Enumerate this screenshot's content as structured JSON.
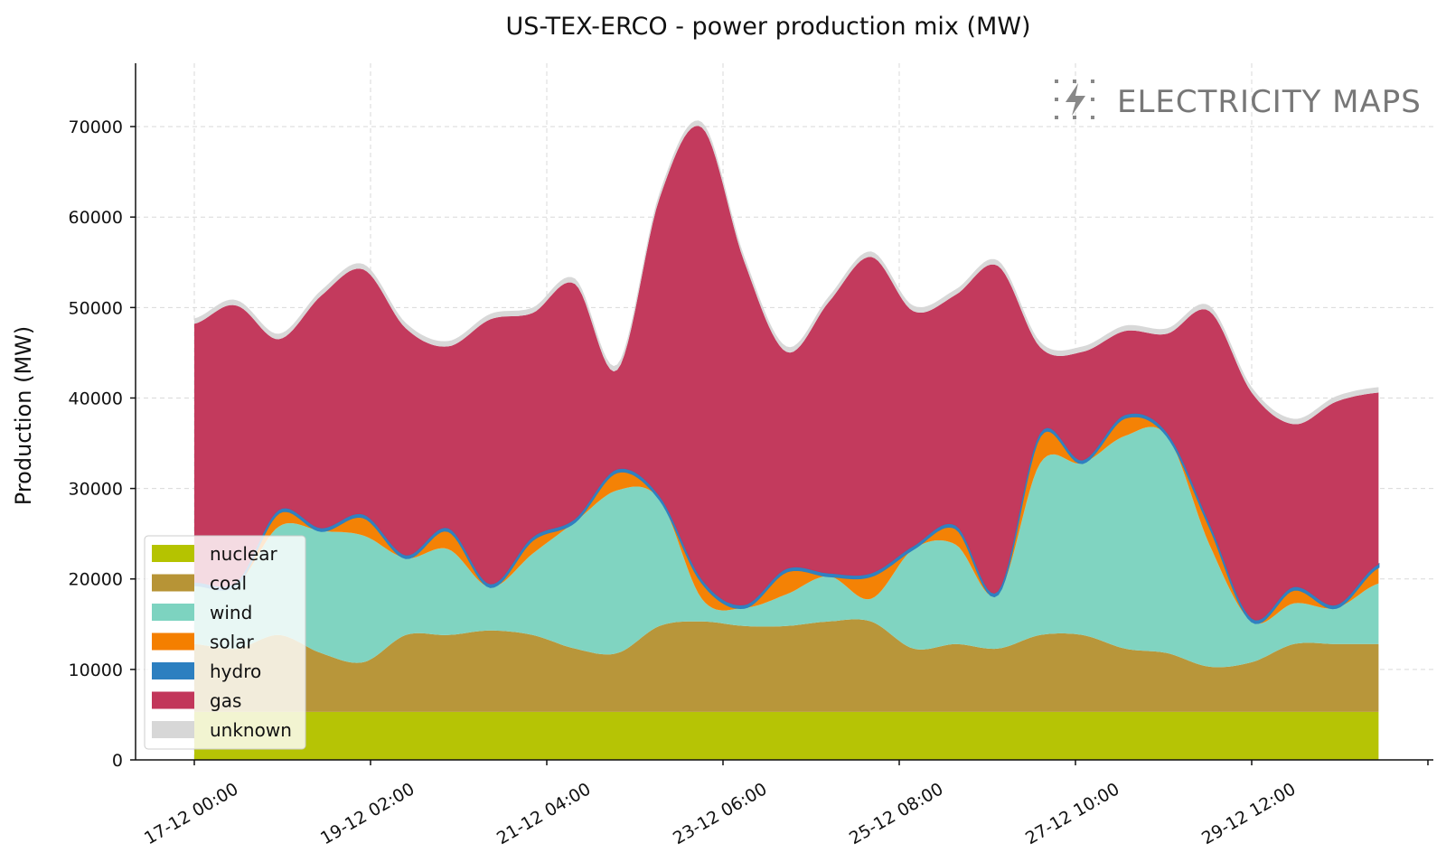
{
  "chart_data": {
    "type": "area",
    "stacked": true,
    "title": "US-TEX-ERCO - power production mix (MW)",
    "ylabel": "Production (MW)",
    "xlabel": "",
    "ylim": [
      0,
      77000
    ],
    "yticks": [
      0,
      10000,
      20000,
      30000,
      40000,
      50000,
      60000,
      70000
    ],
    "xticks": [
      "17-12 00:00",
      "19-12 02:00",
      "21-12 04:00",
      "23-12 06:00",
      "25-12 08:00",
      "27-12 10:00",
      "29-12 12:00"
    ],
    "grid": true,
    "legend_position": "lower-left",
    "watermark": "ELECTRICITY MAPS",
    "x_hours_anchor": [
      0,
      12,
      24,
      36,
      48,
      60,
      72,
      84,
      96,
      108,
      120,
      132,
      144,
      156,
      168,
      180,
      192,
      204,
      216,
      228,
      240,
      252,
      264,
      276,
      288,
      300,
      312,
      324,
      336
    ],
    "series": [
      {
        "name": "nuclear",
        "color": "#b5c300",
        "values": [
          5300,
          5300,
          5300,
          5300,
          5300,
          5300,
          5300,
          5300,
          5300,
          5300,
          5300,
          5300,
          5300,
          5300,
          5300,
          5300,
          5300,
          5300,
          5300,
          5300,
          5300,
          5300,
          5300,
          5300,
          5300,
          5300,
          5300,
          5300,
          5300
        ]
      },
      {
        "name": "coal",
        "color": "#b79436",
        "values": [
          7500,
          7000,
          8500,
          6500,
          5500,
          8500,
          8500,
          9000,
          8500,
          7000,
          6500,
          9500,
          10000,
          9500,
          9500,
          10000,
          10000,
          7000,
          7500,
          7000,
          8500,
          8500,
          7000,
          6500,
          5000,
          5500,
          7500,
          7500,
          7500
        ]
      },
      {
        "name": "wind",
        "color": "#7dd3c0",
        "values": [
          6500,
          7000,
          12000,
          13500,
          14000,
          8500,
          9500,
          4800,
          9000,
          14000,
          18000,
          14000,
          2500,
          2000,
          3500,
          5000,
          2500,
          11000,
          11000,
          6000,
          19000,
          19000,
          23500,
          24000,
          13500,
          4500,
          4500,
          4000,
          6700
        ]
      },
      {
        "name": "solar",
        "color": "#f47f00",
        "values": [
          0,
          0,
          1500,
          0,
          2000,
          0,
          2000,
          0,
          1500,
          0,
          2000,
          0,
          1800,
          0,
          2500,
          0,
          2500,
          0,
          1800,
          0,
          3000,
          0,
          2000,
          0,
          2000,
          0,
          1500,
          0,
          1800
        ]
      },
      {
        "name": "hydro",
        "color": "#2c7fc0",
        "values": [
          300,
          300,
          300,
          300,
          300,
          300,
          300,
          300,
          300,
          300,
          300,
          300,
          300,
          300,
          300,
          300,
          300,
          300,
          300,
          300,
          300,
          300,
          300,
          300,
          300,
          300,
          300,
          300,
          300
        ]
      },
      {
        "name": "gas",
        "color": "#c2365a",
        "values": [
          28600,
          30600,
          18900,
          25700,
          27100,
          25100,
          20100,
          29300,
          24800,
          26000,
          11000,
          33000,
          50000,
          38000,
          24000,
          30000,
          35000,
          26000,
          25500,
          36000,
          9500,
          12000,
          9300,
          11000,
          23500,
          25000,
          18000,
          22500,
          19000
        ]
      },
      {
        "name": "unknown",
        "color": "#d7d7d7",
        "values": [
          600,
          600,
          600,
          600,
          600,
          600,
          600,
          600,
          600,
          600,
          600,
          600,
          600,
          600,
          600,
          600,
          600,
          600,
          600,
          600,
          600,
          600,
          600,
          600,
          600,
          600,
          600,
          600,
          600
        ]
      }
    ]
  }
}
